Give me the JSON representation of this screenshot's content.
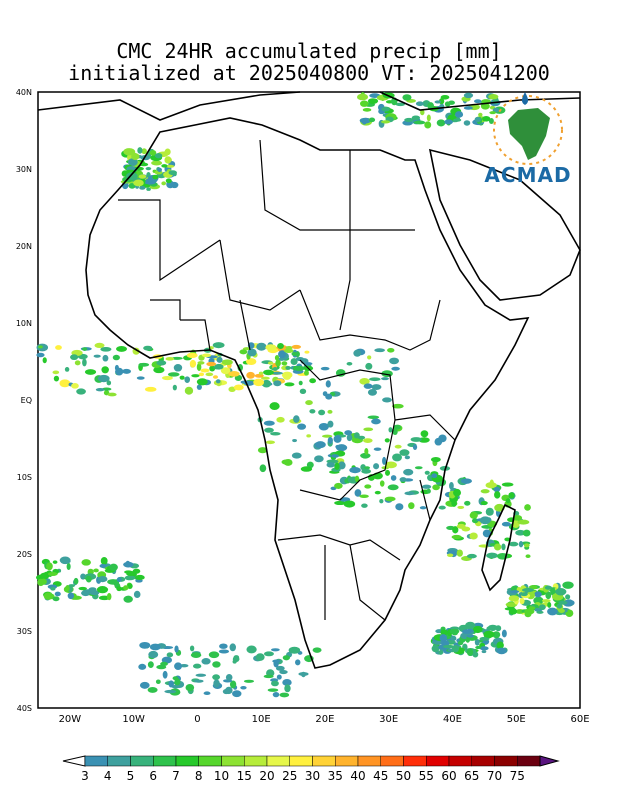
{
  "title": {
    "line1": "CMC 24HR accumulated precip [mm]",
    "line2": "initialized at 2025040800 VT: 2025041200"
  },
  "logo": {
    "text": "ACMAD"
  },
  "map": {
    "lat_ticks": [
      "40N",
      "30N",
      "20N",
      "10N",
      "EQ",
      "10S",
      "20S",
      "30S",
      "40S"
    ],
    "lon_ticks": [
      "20W",
      "10W",
      "0",
      "10E",
      "20E",
      "30E",
      "40E",
      "50E",
      "60E"
    ],
    "lon_range": [
      -25,
      60
    ],
    "lat_range": [
      -40,
      40
    ],
    "precip_areas": [
      {
        "region": "Gulf of Guinea coast",
        "level": "high"
      },
      {
        "region": "Congo Basin",
        "level": "moderate"
      },
      {
        "region": "Madagascar",
        "level": "moderate"
      },
      {
        "region": "South Atlantic",
        "level": "moderate"
      },
      {
        "region": "Mediterranean",
        "level": "moderate"
      }
    ]
  },
  "colorbar": {
    "labels": [
      "3",
      "4",
      "5",
      "6",
      "7",
      "8",
      "10",
      "15",
      "20",
      "25",
      "30",
      "35",
      "40",
      "45",
      "50",
      "55",
      "60",
      "65",
      "70",
      "75"
    ],
    "colors": [
      "#3a91b3",
      "#3ea09e",
      "#38b27c",
      "#2fc24c",
      "#27c92b",
      "#56d62c",
      "#8de233",
      "#b6ec3a",
      "#e6f74a",
      "#fff03f",
      "#ffd236",
      "#ffb32d",
      "#ff9424",
      "#ff6e18",
      "#ff2e09",
      "#e00000",
      "#c40000",
      "#a70000",
      "#8b0000",
      "#6b0010"
    ],
    "under_color": "#ffffff",
    "over_color": "#5a1580"
  }
}
